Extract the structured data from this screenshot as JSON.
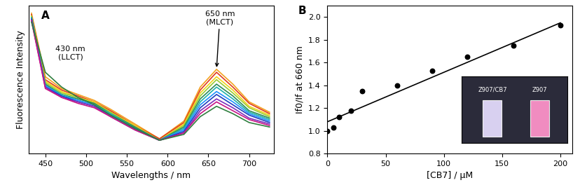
{
  "chart_data": [
    {
      "type": "line",
      "panel": "A",
      "x_label": "Wavelengths / nm",
      "y_label": "Fluorescence Intensity",
      "x": [
        433,
        450,
        470,
        490,
        510,
        530,
        560,
        590,
        620,
        640,
        660,
        680,
        700,
        725
      ],
      "series": [
        {
          "color": "#f4a21f",
          "values": [
            95,
            52,
            44,
            40,
            36,
            30,
            20,
            10,
            22,
            45,
            57,
            47,
            35,
            28
          ]
        },
        {
          "color": "#e03c1e",
          "values": [
            94,
            50,
            43,
            39,
            35,
            29,
            19,
            10,
            21,
            43,
            55,
            45,
            34,
            27
          ]
        },
        {
          "color": "#f2d21a",
          "values": [
            93,
            49,
            42,
            38,
            35,
            28,
            19,
            9,
            20,
            41,
            52,
            43,
            32,
            26
          ]
        },
        {
          "color": "#9acd32",
          "values": [
            93,
            48,
            41,
            38,
            34,
            28,
            18,
            9,
            19,
            39,
            50,
            41,
            31,
            25
          ]
        },
        {
          "color": "#2e8b57",
          "values": [
            92,
            47,
            40,
            37,
            34,
            27,
            18,
            9,
            18,
            37,
            47,
            39,
            29,
            24
          ]
        },
        {
          "color": "#20b2aa",
          "values": [
            92,
            46,
            40,
            36,
            33,
            27,
            17,
            9,
            17,
            35,
            45,
            37,
            28,
            23
          ]
        },
        {
          "color": "#1e90ff",
          "values": [
            91,
            46,
            39,
            36,
            33,
            26,
            17,
            9,
            16,
            33,
            42,
            35,
            27,
            22
          ]
        },
        {
          "color": "#1f3fbf",
          "values": [
            91,
            45,
            39,
            35,
            32,
            26,
            17,
            9,
            15,
            31,
            40,
            33,
            26,
            21
          ]
        },
        {
          "color": "#7b2fbe",
          "values": [
            90,
            45,
            38,
            35,
            32,
            25,
            16,
            9,
            14,
            29,
            37,
            31,
            24,
            20
          ]
        },
        {
          "color": "#c71585",
          "values": [
            90,
            44,
            38,
            34,
            31,
            25,
            16,
            9,
            14,
            27,
            35,
            29,
            23,
            19
          ]
        },
        {
          "color": "#2f7f3f",
          "values": [
            89,
            55,
            45,
            38,
            33,
            26,
            17,
            9,
            13,
            25,
            32,
            27,
            21,
            18
          ]
        }
      ],
      "xlim": [
        430,
        730
      ],
      "xticks": [
        450,
        500,
        550,
        600,
        650,
        700
      ],
      "ylim": [
        0,
        100
      ],
      "tick_labels": "x",
      "annotations": [
        "650 nm\n(MLCT)",
        "430 nm\n(LLCT)"
      ]
    },
    {
      "type": "scatter",
      "panel": "B",
      "x_label": "[CB7] / μM",
      "y_label": "If0/If at 660 nm",
      "x": [
        0,
        5,
        10,
        20,
        30,
        60,
        90,
        120,
        160,
        200
      ],
      "series": [
        {
          "type": "scatter",
          "color": "#000000",
          "marker": "o",
          "values": [
            1.0,
            1.03,
            1.12,
            1.18,
            1.35,
            1.4,
            1.53,
            1.65,
            1.75,
            1.93
          ]
        },
        {
          "type": "line",
          "color": "#000000",
          "line_style": "solid",
          "x": [
            0,
            200
          ],
          "values": [
            1.08,
            1.95
          ]
        }
      ],
      "xlim": [
        0,
        210
      ],
      "xticks": [
        0,
        50,
        100,
        150,
        200
      ],
      "ylim": [
        0.8,
        2.1
      ],
      "yticks": [
        0.8,
        {
          "value": 1,
          "label": "1.0"
        },
        1.2,
        1.4,
        1.6,
        1.8,
        {
          "value": 2,
          "label": "2.0"
        }
      ],
      "inset_labels": [
        "Z907/CB7",
        "Z907"
      ]
    }
  ]
}
